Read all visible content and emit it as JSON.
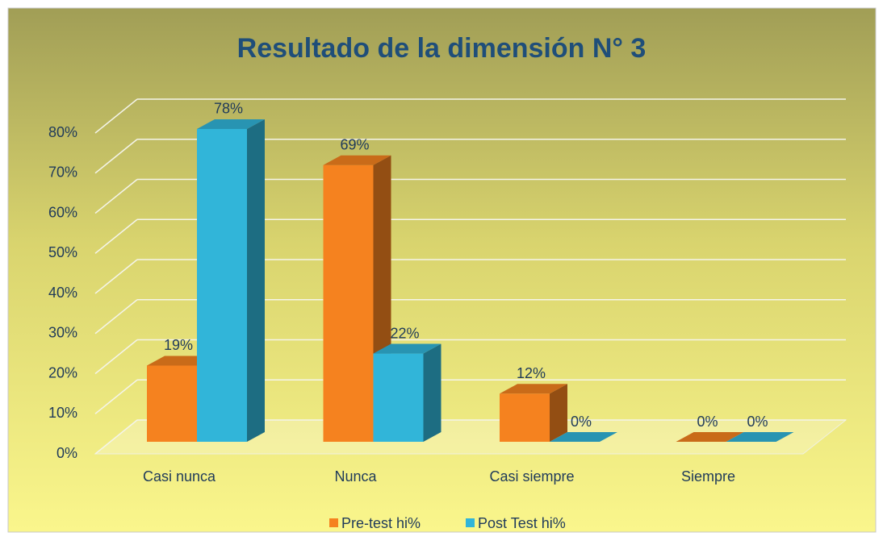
{
  "chart_data": {
    "type": "bar3d",
    "title": "Resultado de la dimensión N° 3",
    "categories": [
      "Casi nunca",
      "Nunca",
      "Casi siempre",
      "Siempre"
    ],
    "series": [
      {
        "name": "Pre-test hi%",
        "color": "#f5821f",
        "values": [
          19,
          69,
          12,
          0
        ],
        "value_labels": [
          "19%",
          "69%",
          "12%",
          "0%"
        ]
      },
      {
        "name": "Post Test hi%",
        "color": "#31b5d9",
        "values": [
          78,
          22,
          0,
          0
        ],
        "value_labels": [
          "78%",
          "22%",
          "0%",
          "0%"
        ]
      }
    ],
    "ylim": [
      0,
      80
    ],
    "yticks": [
      {
        "value": 0,
        "label": "0%"
      },
      {
        "value": 10,
        "label": "10%"
      },
      {
        "value": 20,
        "label": "20%"
      },
      {
        "value": 30,
        "label": "30%"
      },
      {
        "value": 40,
        "label": "40%"
      },
      {
        "value": 50,
        "label": "50%"
      },
      {
        "value": 60,
        "label": "60%"
      },
      {
        "value": 70,
        "label": "70%"
      },
      {
        "value": 80,
        "label": "80%"
      }
    ],
    "grid": true,
    "legend": "bottom"
  }
}
